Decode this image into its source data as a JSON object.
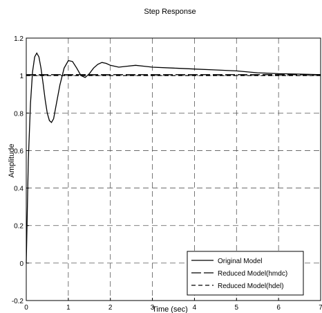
{
  "chart_data": {
    "type": "line",
    "title": "Step Response",
    "xlabel": "Time (sec)",
    "ylabel": "Amplitude",
    "xlim": [
      0,
      7
    ],
    "ylim": [
      -0.2,
      1.2
    ],
    "xticks": [
      0,
      1,
      2,
      3,
      4,
      5,
      6,
      7
    ],
    "yticks": [
      -0.2,
      0,
      0.2,
      0.4,
      0.6,
      0.8,
      1,
      1.2
    ],
    "xtick_labels": [
      "0",
      "1",
      "2",
      "3",
      "4",
      "5",
      "6",
      "7"
    ],
    "ytick_labels": [
      "-0.2",
      "0",
      "0.2",
      "0.4",
      "0.6",
      "0.8",
      "1",
      "1.2"
    ],
    "grid": true,
    "legend_position": "bottom-right",
    "series": [
      {
        "name": "Original Model",
        "style": "solid",
        "color": "#000000",
        "x": [
          0,
          0.05,
          0.1,
          0.15,
          0.2,
          0.25,
          0.3,
          0.35,
          0.4,
          0.45,
          0.5,
          0.55,
          0.6,
          0.65,
          0.7,
          0.8,
          0.9,
          1.0,
          1.1,
          1.2,
          1.3,
          1.4,
          1.5,
          1.6,
          1.7,
          1.8,
          1.9,
          2.0,
          2.2,
          2.4,
          2.6,
          2.8,
          3.0,
          3.5,
          4.0,
          4.5,
          5.0,
          5.5,
          6.0,
          6.5,
          7.0
        ],
        "y": [
          0,
          0.55,
          0.85,
          1.02,
          1.1,
          1.12,
          1.1,
          1.04,
          0.96,
          0.87,
          0.8,
          0.76,
          0.75,
          0.77,
          0.83,
          0.95,
          1.04,
          1.08,
          1.075,
          1.04,
          1.0,
          0.99,
          1.01,
          1.04,
          1.06,
          1.07,
          1.065,
          1.055,
          1.045,
          1.05,
          1.055,
          1.05,
          1.045,
          1.04,
          1.035,
          1.03,
          1.025,
          1.015,
          1.01,
          1.008,
          1.005
        ]
      },
      {
        "name": "Reduced Model(hmdc)",
        "style": "longdash",
        "color": "#000000",
        "x": [
          0,
          7
        ],
        "y": [
          1.005,
          1.005
        ]
      },
      {
        "name": "Reduced Model(hdel)",
        "style": "dash",
        "color": "#000000",
        "x": [
          0,
          7
        ],
        "y": [
          1.0,
          1.0
        ]
      }
    ]
  }
}
